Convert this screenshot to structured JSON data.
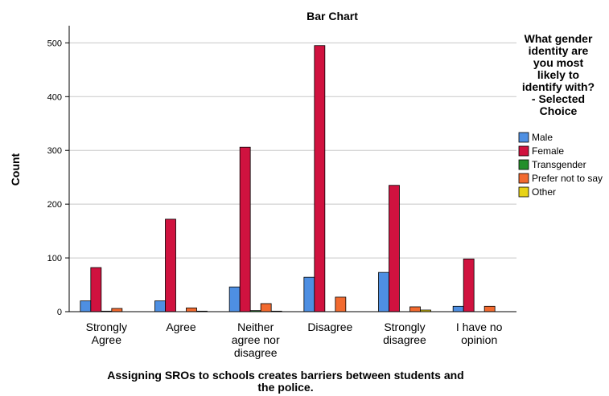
{
  "chart_data": {
    "type": "bar",
    "title": "Bar Chart",
    "ylabel": "Count",
    "xlabel_lines": [
      "Assigning SROs to schools creates barriers between students and",
      "the police."
    ],
    "categories": [
      [
        "Strongly",
        "Agree"
      ],
      [
        "Agree"
      ],
      [
        "Neither",
        "agree nor",
        "disagree"
      ],
      [
        "Disagree"
      ],
      [
        "Strongly",
        "disagree"
      ],
      [
        "I have no",
        "opinion"
      ]
    ],
    "ylim": [
      0,
      520
    ],
    "yticks": [
      0,
      100,
      200,
      300,
      400,
      500
    ],
    "grid": true,
    "legend_position": "right",
    "legend_title_lines": [
      "What gender",
      "identity are",
      "you most",
      "likely to",
      "identify with?",
      "- Selected",
      "Choice"
    ],
    "series": [
      {
        "name": "Male",
        "color": "#4e8fe2",
        "values": [
          20,
          20,
          46,
          64,
          73,
          10
        ]
      },
      {
        "name": "Female",
        "color": "#d0123f",
        "values": [
          82,
          172,
          306,
          495,
          235,
          98
        ]
      },
      {
        "name": "Transgender",
        "color": "#238f2a",
        "values": [
          1,
          0,
          2,
          0,
          0,
          0
        ]
      },
      {
        "name": "Prefer not to say",
        "color": "#f26a2f",
        "values": [
          6,
          7,
          15,
          27,
          9,
          10
        ]
      },
      {
        "name": "Other",
        "color": "#e8d316",
        "values": [
          0,
          1,
          1,
          0,
          3,
          0
        ]
      }
    ]
  }
}
